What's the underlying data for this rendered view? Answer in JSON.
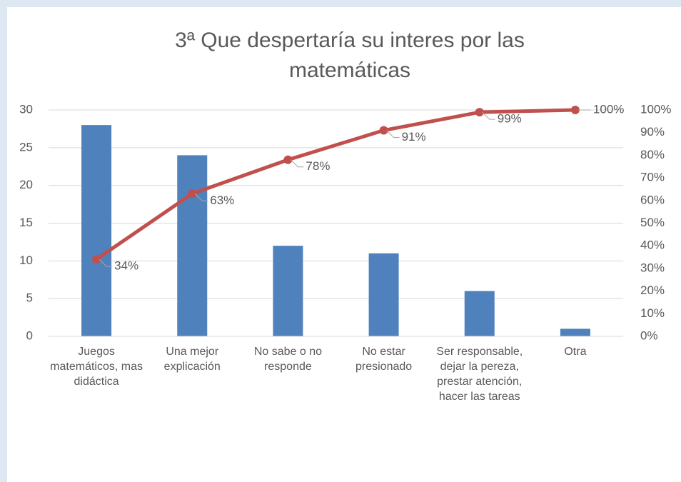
{
  "chart_data": {
    "type": "pareto",
    "title": "3ª Que despertaría su interes por las matemáticas",
    "categories": [
      "Juegos matemáticos, mas didáctica",
      "Una mejor explicación",
      "No sabe o no responde",
      "No estar presionado",
      "Ser responsable, dejar la pereza, prestar atención, hacer las tareas",
      "Otra"
    ],
    "series": [
      {
        "type": "bar",
        "color": "#4f81bd",
        "values": [
          28,
          24,
          12,
          11,
          6,
          1
        ]
      },
      {
        "type": "line",
        "axis": "y2",
        "color": "#c0504d",
        "values": [
          34,
          63,
          78,
          91,
          99,
          100
        ],
        "value_labels": [
          "34%",
          "63%",
          "78%",
          "91%",
          "99%",
          "100%"
        ]
      }
    ],
    "ylim": [
      0,
      30
    ],
    "yticks": [
      0,
      5,
      10,
      15,
      20,
      25,
      30
    ],
    "y2lim": [
      0,
      100
    ],
    "y2ticks": [
      {
        "value": 0,
        "label": "0%"
      },
      {
        "value": 10,
        "label": "10%"
      },
      {
        "value": 20,
        "label": "20%"
      },
      {
        "value": 30,
        "label": "30%"
      },
      {
        "value": 40,
        "label": "40%"
      },
      {
        "value": 50,
        "label": "50%"
      },
      {
        "value": 60,
        "label": "60%"
      },
      {
        "value": 70,
        "label": "70%"
      },
      {
        "value": 80,
        "label": "80%"
      },
      {
        "value": 90,
        "label": "90%"
      },
      {
        "value": 100,
        "label": "100%"
      }
    ],
    "grid": true
  }
}
